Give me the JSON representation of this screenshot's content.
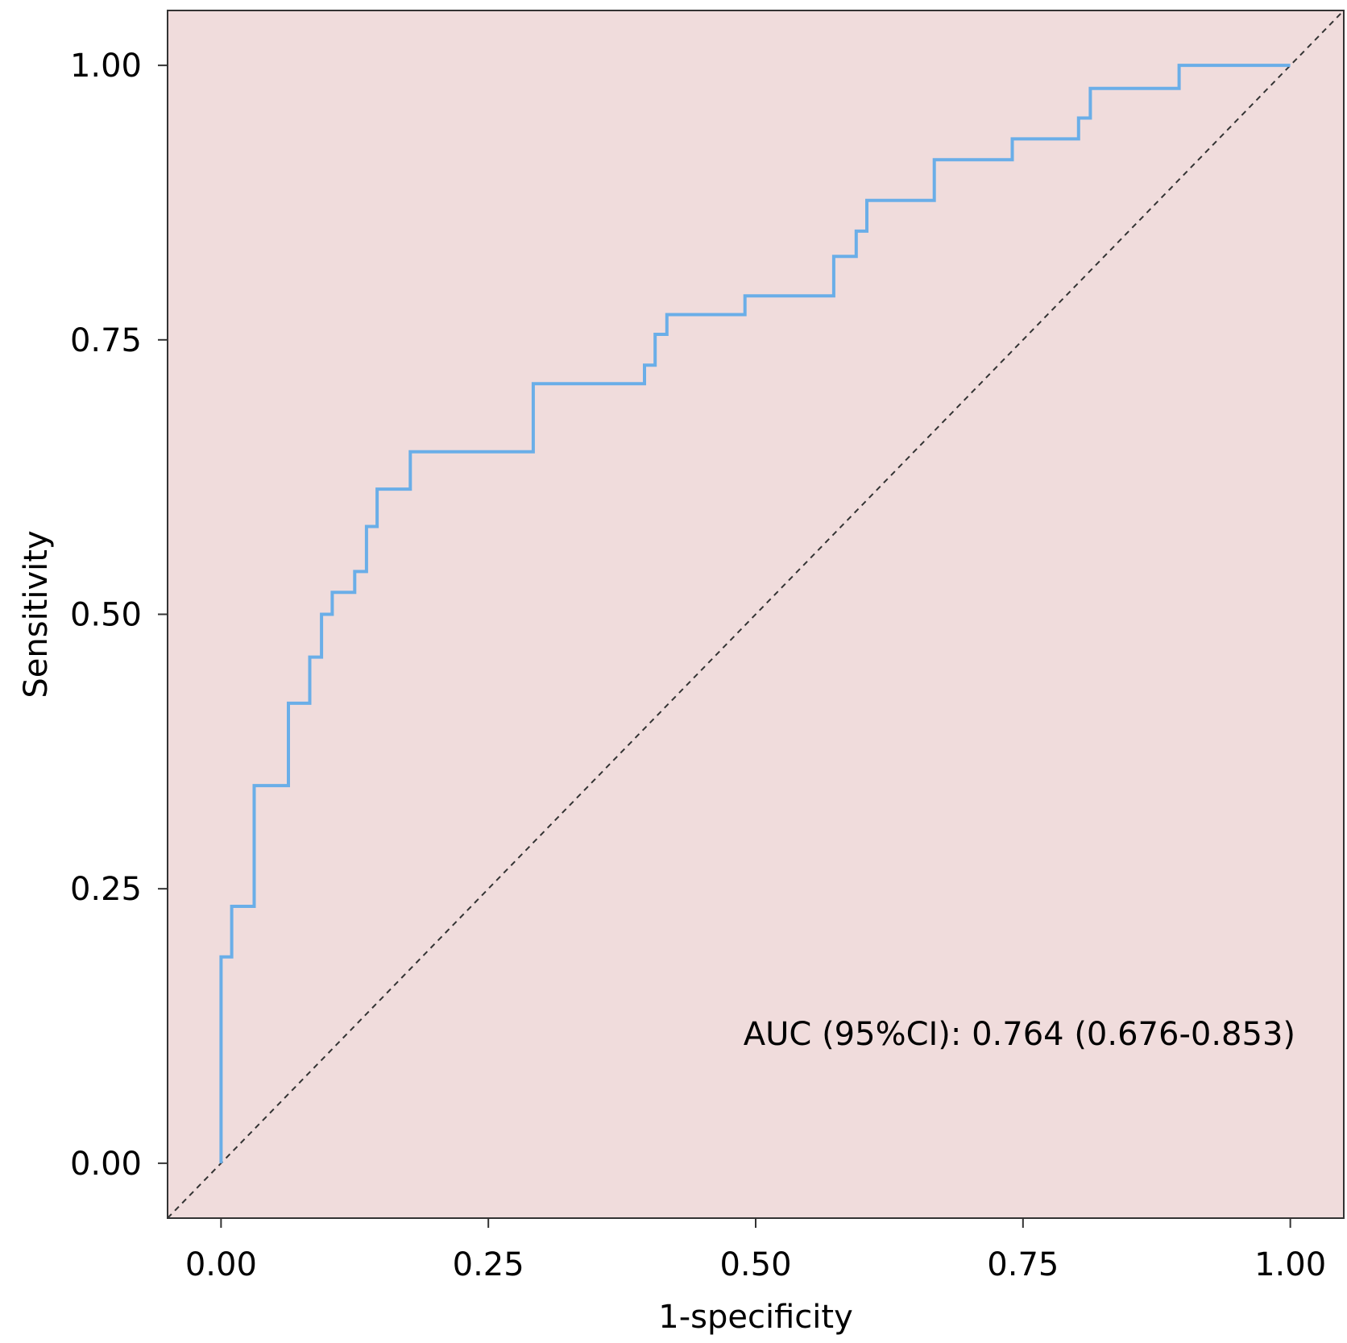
{
  "chart_data": {
    "type": "line",
    "xlabel": "1-specificity",
    "ylabel": "Sensitivity",
    "xlim": [
      -0.05,
      1.05
    ],
    "ylim": [
      -0.05,
      1.05
    ],
    "x_ticks": [
      0,
      0.25,
      0.5,
      0.75,
      1
    ],
    "y_ticks": [
      0,
      0.25,
      0.5,
      0.75,
      1
    ],
    "x_tick_labels": [
      "0.00",
      "0.25",
      "0.50",
      "0.75",
      "1.00"
    ],
    "y_tick_labels": [
      "0.00",
      "0.25",
      "0.50",
      "0.75",
      "1.00"
    ],
    "grid": false,
    "background_color": "#f0dcdc",
    "annotation": "AUC (95%CI): 0.764 (0.676-0.853)",
    "series": [
      {
        "line_color": "#6aaee8",
        "x": [
          0,
          0,
          0.01,
          0.01,
          0.031,
          0.031,
          0.063,
          0.063,
          0.083,
          0.083,
          0.094,
          0.094,
          0.104,
          0.104,
          0.125,
          0.125,
          0.136,
          0.136,
          0.146,
          0.146,
          0.177,
          0.177,
          0.292,
          0.292,
          0.396,
          0.396,
          0.406,
          0.406,
          0.417,
          0.417,
          0.49,
          0.49,
          0.573,
          0.573,
          0.594,
          0.594,
          0.604,
          0.604,
          0.667,
          0.667,
          0.74,
          0.74,
          0.802,
          0.802,
          0.813,
          0.813,
          0.896,
          0.896,
          1
        ],
        "y": [
          0,
          0.188,
          0.188,
          0.234,
          0.234,
          0.344,
          0.344,
          0.419,
          0.419,
          0.461,
          0.461,
          0.5,
          0.5,
          0.52,
          0.52,
          0.539,
          0.539,
          0.58,
          0.58,
          0.614,
          0.614,
          0.648,
          0.648,
          0.71,
          0.71,
          0.727,
          0.727,
          0.755,
          0.755,
          0.773,
          0.773,
          0.79,
          0.79,
          0.826,
          0.826,
          0.849,
          0.849,
          0.877,
          0.877,
          0.914,
          0.914,
          0.933,
          0.933,
          0.952,
          0.952,
          0.979,
          0.979,
          1,
          1
        ]
      }
    ],
    "reference_line": {
      "x": [
        -0.05,
        1.05
      ],
      "y": [
        -0.05,
        1.05
      ],
      "style": "dashed",
      "color": "#333333"
    }
  }
}
